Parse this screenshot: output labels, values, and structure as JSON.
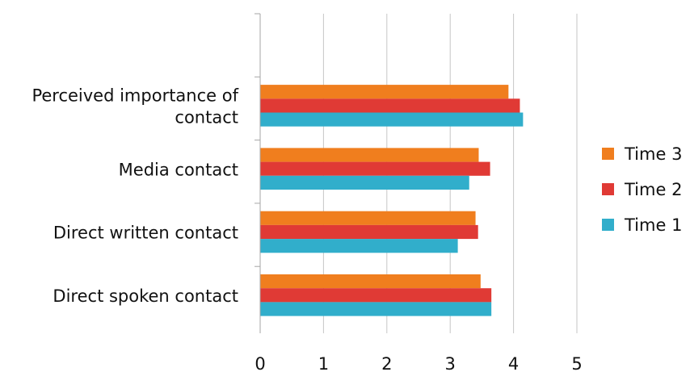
{
  "chart_data": {
    "type": "bar",
    "orientation": "horizontal",
    "categories": [
      "Perceived importance of contact",
      "Media contact",
      "Direct written contact",
      "Direct spoken contact"
    ],
    "category_label_lines": [
      [
        "Perceived importance of",
        "contact"
      ],
      [
        "Media contact"
      ],
      [
        "Direct written contact"
      ],
      [
        "Direct spoken contact"
      ]
    ],
    "series": [
      {
        "name": "Time 3",
        "color": "#F07E1E",
        "values": [
          3.92,
          3.45,
          3.4,
          3.48
        ]
      },
      {
        "name": "Time 2",
        "color": "#E03A35",
        "values": [
          4.1,
          3.63,
          3.44,
          3.65
        ]
      },
      {
        "name": "Time 1",
        "color": "#31AECB",
        "values": [
          4.15,
          3.3,
          3.12,
          3.65
        ]
      }
    ],
    "xlim": [
      0,
      5
    ],
    "xticks": [
      "0",
      "1",
      "2",
      "3",
      "4",
      "5"
    ],
    "xlabel": "",
    "ylabel": "",
    "title": "",
    "grid": true,
    "legend_position": "right"
  }
}
